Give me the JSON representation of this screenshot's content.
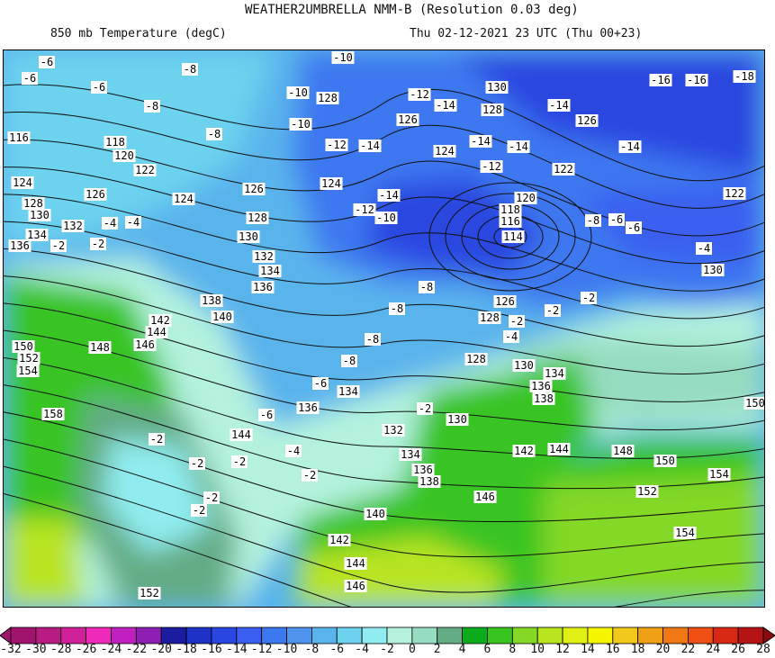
{
  "header": {
    "title": "WEATHER2UMBRELLA NMM-B (Resolution 0.03 deg)",
    "variable": "850 mb Temperature (degC)",
    "valid_time": "Thu 02-12-2021 23 UTC (Thu 00+23)"
  },
  "colorbar": {
    "labels": [
      "-32",
      "-30",
      "-28",
      "-26",
      "-24",
      "-22",
      "-20",
      "-18",
      "-16",
      "-14",
      "-12",
      "-10",
      "-8",
      "-6",
      "-4",
      "-2",
      "0",
      "2",
      "4",
      "6",
      "8",
      "10",
      "12",
      "14",
      "16",
      "18",
      "20",
      "22",
      "24",
      "26",
      "28"
    ],
    "colors": [
      "#a0146e",
      "#b81c82",
      "#d0209a",
      "#f02ab8",
      "#c020c0",
      "#8c1eb4",
      "#1c1ca0",
      "#1e32c8",
      "#2a46e0",
      "#3a5ef0",
      "#3c78f0",
      "#4e94ec",
      "#5ab4ec",
      "#6cd2ee",
      "#90ecee",
      "#b4f2de",
      "#96dcc0",
      "#64ac84",
      "#0cac1c",
      "#38c420",
      "#84d826",
      "#b8e420",
      "#e0f014",
      "#f6f600",
      "#f2c81c",
      "#f0a014",
      "#f07814",
      "#f05014",
      "#d82814",
      "#b41414"
    ],
    "low_color": "#a0146e",
    "high_color": "#8c0a0a"
  },
  "contour_labels": [
    "-10",
    "128",
    "-10",
    "126",
    "124",
    "128",
    "130",
    "126",
    "122",
    "122",
    "120",
    "118",
    "116",
    "114",
    "130",
    "126",
    "128",
    "128",
    "130",
    "134",
    "136",
    "138",
    "130",
    "132",
    "134",
    "136",
    "138",
    "140",
    "142",
    "144",
    "146",
    "146",
    "144",
    "142",
    "148",
    "150",
    "152",
    "154",
    "154",
    "150",
    "152",
    "142",
    "144",
    "146",
    "148",
    "150",
    "152",
    "154",
    "158",
    "140",
    "138",
    "136",
    "134",
    "132",
    "130",
    "128",
    "126",
    "124",
    "122",
    "120",
    "118",
    "116",
    "124",
    "126",
    "128",
    "130",
    "132",
    "134",
    "136",
    "144",
    "136",
    "134",
    "124",
    "-14",
    "-12",
    "-14",
    "-16",
    "-16",
    "-18",
    "-14",
    "-12",
    "-14",
    "-14",
    "-12",
    "-14",
    "-14",
    "-12",
    "-10",
    "-8",
    "-8",
    "-6",
    "-6",
    "-6",
    "-8",
    "-10",
    "-6",
    "-6",
    "-8",
    "-4",
    "-2",
    "-2",
    "-2",
    "-4",
    "-8",
    "-8",
    "-2",
    "-2",
    "-4",
    "-2",
    "-2",
    "-2",
    "-2",
    "-2",
    "-6",
    "-6",
    "-8",
    "-8",
    "-2",
    "-2",
    "-4",
    "-4"
  ]
}
